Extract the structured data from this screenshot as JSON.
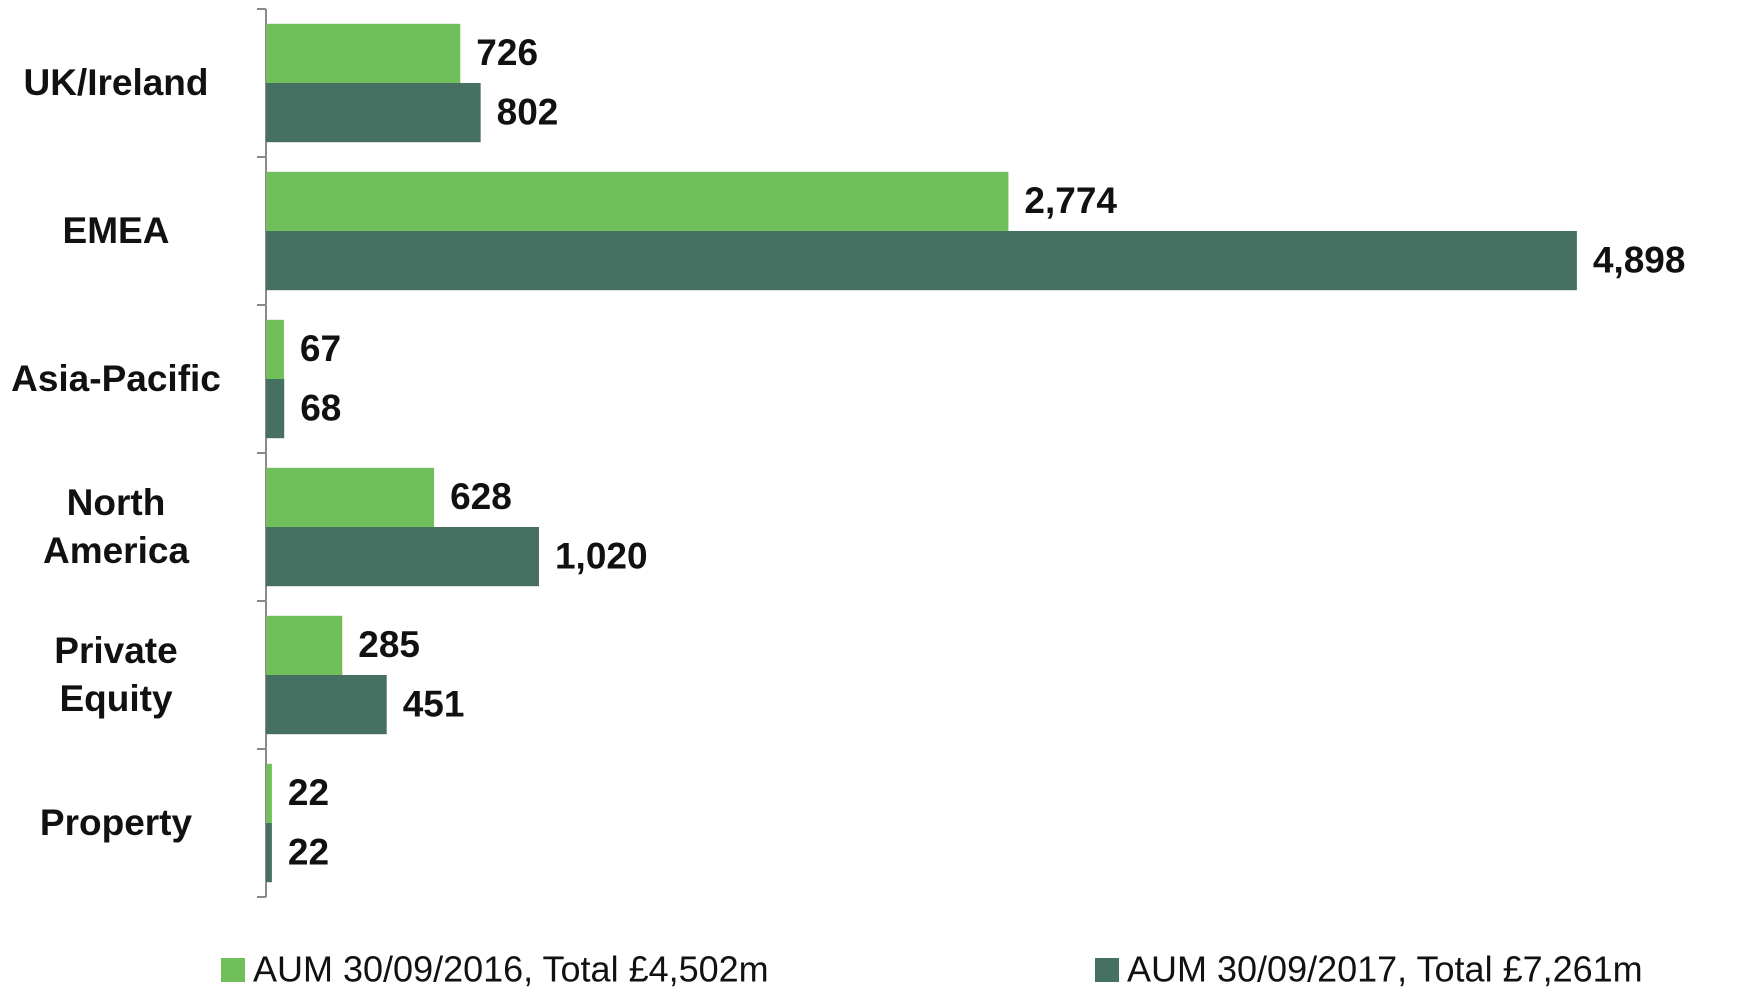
{
  "chart_data": {
    "type": "bar",
    "orientation": "horizontal",
    "categories": [
      "UK/Ireland",
      "EMEA",
      "Asia-Pacific",
      "North America",
      "Private Equity",
      "Property"
    ],
    "series": [
      {
        "name": "AUM 30/09/2016, Total £4,502m",
        "color": "#70bf5a",
        "values": [
          726,
          2774,
          67,
          628,
          285,
          22
        ],
        "value_labels": [
          "726",
          "2,774",
          "67",
          "628",
          "285",
          "22"
        ]
      },
      {
        "name": "AUM 30/09/2017, Total £7,261m",
        "color": "#467061",
        "values": [
          802,
          4898,
          68,
          1020,
          451,
          22
        ],
        "value_labels": [
          "802",
          "4,898",
          "68",
          "1,020",
          "451",
          "22"
        ]
      }
    ],
    "xlim": [
      0,
      5500
    ],
    "legend": "bottom"
  }
}
